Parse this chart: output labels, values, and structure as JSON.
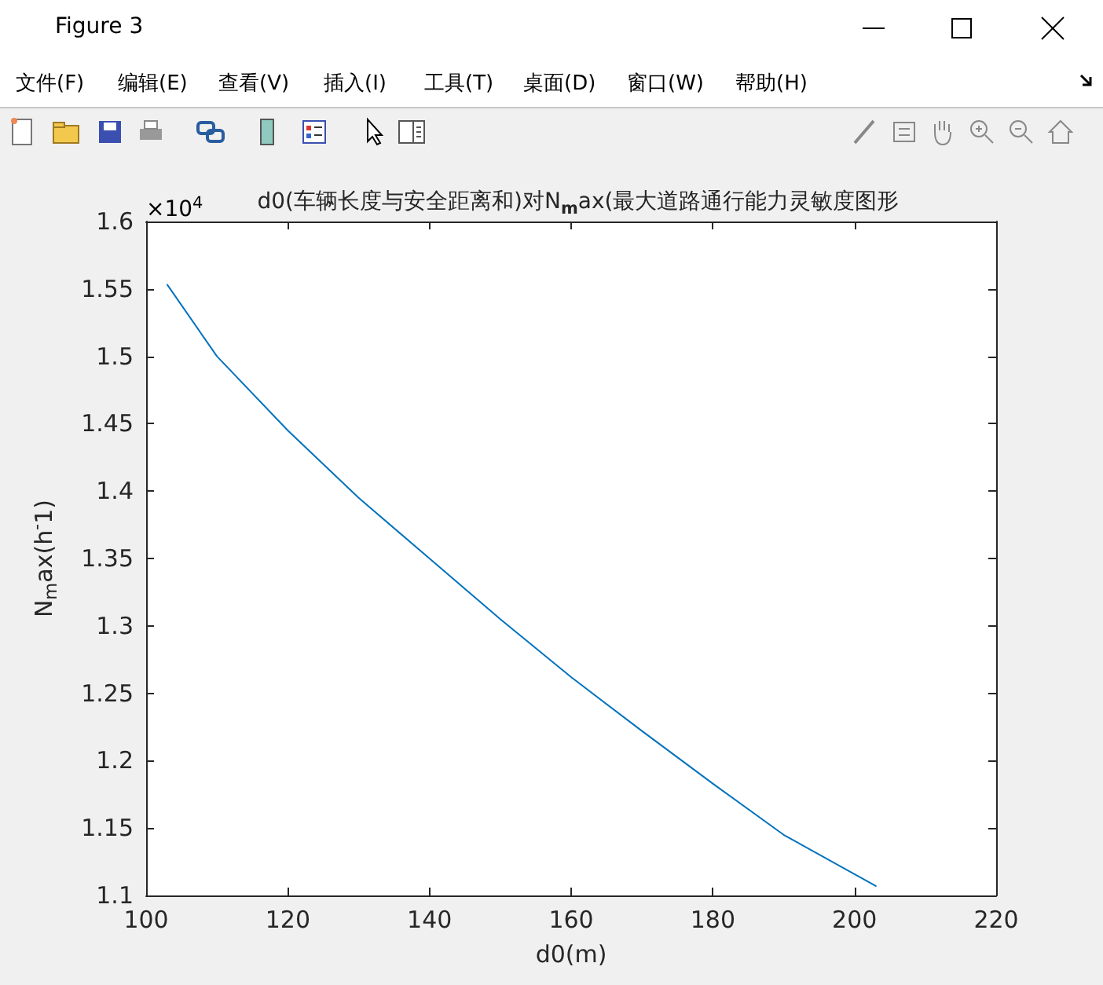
{
  "chart_data": {
    "type": "line",
    "title": "d0(车辆长度与安全距离和)对N$_{m}$ax(最大道路通行能力灵敏度图形",
    "xlabel": "d0(m)",
    "ylabel": "N$_{m}$ax(h$^{-}$1)",
    "annotations": [
      "×10$^{4}$",
      "Figure 3",
      "文件(F)",
      "编辑(E)",
      "查看(V)",
      "插入(I)",
      "工具(T)",
      "桌面(D)",
      "窗口(W)",
      "帮助(H)"
    ],
    "x": [
      103,
      110,
      120,
      130,
      140,
      150,
      160,
      170,
      180,
      190,
      203
    ],
    "series": [
      {
        "color": "#0072bd",
        "values": [
          1.553,
          1.5,
          1.445,
          1.395,
          1.35,
          1.305,
          1.262,
          1.222,
          1.183,
          1.145,
          1.107
        ]
      }
    ],
    "xlim": [
      100,
      220
    ],
    "xticks": [
      100,
      120,
      140,
      160,
      180,
      200,
      220
    ],
    "ylim": [
      1.1,
      1.6
    ],
    "yticks": [
      1.1,
      1.15,
      1.2,
      1.25,
      1.3,
      1.35,
      1.4,
      1.45,
      1.5,
      1.55,
      1.6
    ],
    "grid": false
  }
}
